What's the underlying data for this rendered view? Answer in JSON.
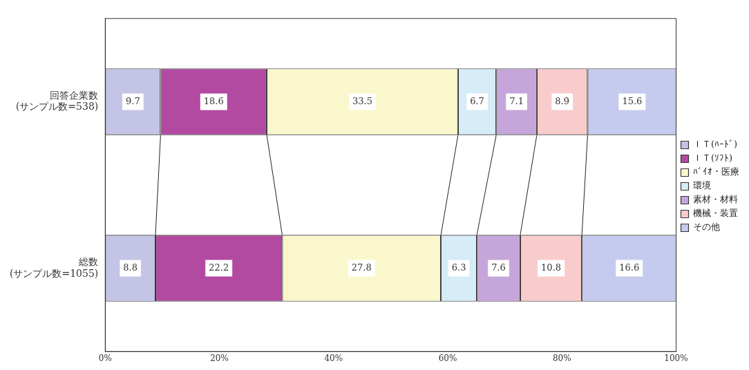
{
  "chart_data": {
    "type": "bar",
    "orientation": "horizontal",
    "stacked": true,
    "categories": [
      "回答企業数\n(サンプル数=538)",
      "総数\n(サンプル数=1055)"
    ],
    "series": [
      {
        "name": "ＩＴ(ﾊｰﾄﾞ)",
        "color": "#c4c4e6",
        "values": [
          9.7,
          8.8
        ]
      },
      {
        "name": "ＩＴ(ｿﾌﾄ)",
        "color": "#b34aa2",
        "values": [
          18.6,
          22.2
        ]
      },
      {
        "name": "ﾊﾞｲｵ・医療",
        "color": "#fbf7cc",
        "values": [
          33.5,
          27.8
        ]
      },
      {
        "name": "環境",
        "color": "#d6ecf7",
        "values": [
          6.7,
          6.3
        ]
      },
      {
        "name": "素材・材料",
        "color": "#c6a6da",
        "values": [
          7.1,
          7.6
        ]
      },
      {
        "name": "機械・装置",
        "color": "#f8cccc",
        "values": [
          8.9,
          10.8
        ]
      },
      {
        "name": "その他",
        "color": "#c4cbee",
        "values": [
          15.6,
          16.6
        ]
      }
    ],
    "xlim": [
      0,
      100
    ],
    "xticks": [
      {
        "value": 0,
        "label": "0%"
      },
      {
        "value": 20,
        "label": "20%"
      },
      {
        "value": 40,
        "label": "40%"
      },
      {
        "value": 60,
        "label": "60%"
      },
      {
        "value": 80,
        "label": "80%"
      },
      {
        "value": 100,
        "label": "100%"
      }
    ],
    "grid": false,
    "legend": "right",
    "data_labels": true
  }
}
